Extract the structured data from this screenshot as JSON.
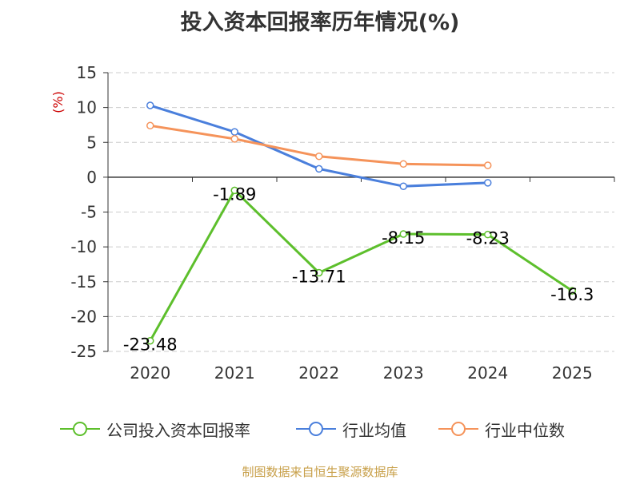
{
  "title": "投入资本回报率历年情况(%)",
  "source": "制图数据来自恒生聚源数据库",
  "colors": {
    "company": "#5dbf2c",
    "industry_avg": "#4a7fdc",
    "industry_median": "#f5935a",
    "ylabel": "#cc0000",
    "grid": "#cccccc",
    "axis": "#333333",
    "text": "#333333"
  },
  "chart_data": {
    "type": "line",
    "title": "投入资本回报率历年情况(%)",
    "ylabel": "(%)",
    "xlabel": "",
    "categories": [
      "2020",
      "2021",
      "2022",
      "2023",
      "2024",
      "2025"
    ],
    "ylim": [
      -25,
      15
    ],
    "yticks": [
      15,
      10,
      5,
      0,
      -5,
      -10,
      -15,
      -20,
      -25
    ],
    "grid": true,
    "legend_position": "bottom",
    "series": [
      {
        "name": "公司投入资本回报率",
        "key": "company",
        "values": [
          -23.48,
          -1.89,
          -13.71,
          -8.15,
          -8.23,
          -16.3
        ],
        "labels": [
          "-23.48",
          "-1.89",
          "-13.71",
          "-8.15",
          "-8.23",
          "-16.3"
        ]
      },
      {
        "name": "行业均值",
        "key": "industry_avg",
        "values": [
          10.3,
          6.5,
          1.2,
          -1.3,
          -0.8,
          null
        ]
      },
      {
        "name": "行业中位数",
        "key": "industry_median",
        "values": [
          7.4,
          5.5,
          3.0,
          1.9,
          1.7,
          null
        ]
      }
    ]
  }
}
